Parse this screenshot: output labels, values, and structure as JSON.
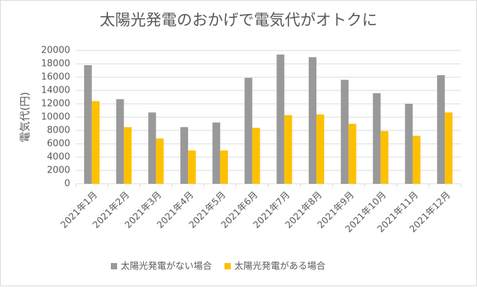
{
  "chart_data": {
    "type": "bar",
    "title": "太陽光発電のおかげで電気代がオトクに",
    "y_label": "電気代(円)",
    "categories": [
      "2021年1月",
      "2021年2月",
      "2021年3月",
      "2021年4月",
      "2021年5月",
      "2021年6月",
      "2021年7月",
      "2021年8月",
      "2021年9月",
      "2021年10月",
      "2021年11月",
      "2021年12月"
    ],
    "series": [
      {
        "name": "太陽光発電がない場合",
        "color": "#999999",
        "values": [
          17800,
          12700,
          10700,
          8500,
          9200,
          15900,
          19400,
          19000,
          15600,
          13600,
          12000,
          16300
        ]
      },
      {
        "name": "太陽光発電がある場合",
        "color": "#ffc000",
        "values": [
          12400,
          8500,
          6800,
          5000,
          5000,
          8400,
          10300,
          10400,
          9000,
          7900,
          7200,
          10700
        ]
      }
    ],
    "ylim": [
      0,
      20000
    ],
    "yticks": [
      0,
      2000,
      4000,
      6000,
      8000,
      10000,
      12000,
      14000,
      16000,
      18000,
      20000
    ],
    "grid": true,
    "legend": "bottom"
  }
}
